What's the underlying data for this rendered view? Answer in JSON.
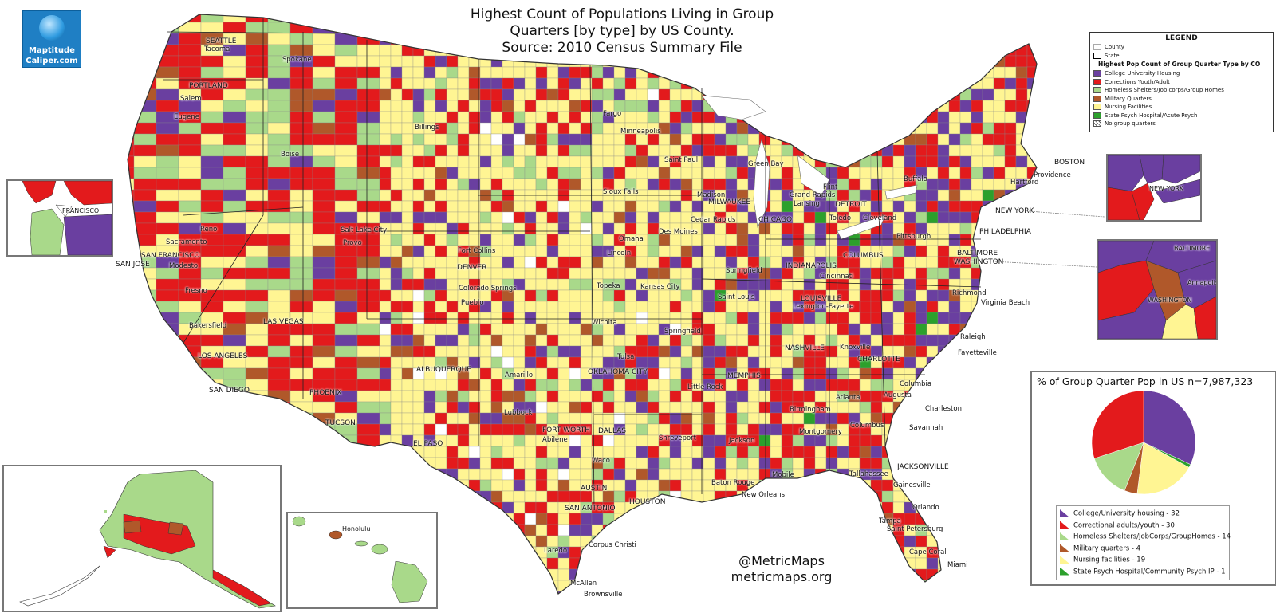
{
  "title": {
    "line1": "Highest Count of Populations Living in Group",
    "line2": "Quarters [by type] by US County.",
    "line3": "Source: 2010 Census Summary File"
  },
  "logo": {
    "line1": "Maptitude",
    "line2": "Caliper.com"
  },
  "colors": {
    "college": "#6a3fa0",
    "corrections": "#e31a1c",
    "homeless": "#a9d98a",
    "military": "#b0582a",
    "nursing": "#fff593",
    "psych": "#2ca02c",
    "none": "#ffffff",
    "border": "#444444"
  },
  "legend": {
    "title": "LEGEND",
    "county": "County",
    "state": "State",
    "subtitle": "Highest Pop Count of Group Quarter Type by CO",
    "items": [
      {
        "label": "College University Housing",
        "color": "#6a3fa0"
      },
      {
        "label": "Corrections Youth/Adult",
        "color": "#e31a1c"
      },
      {
        "label": "Homeless Shelters/Job corps/Group Homes",
        "color": "#a9d98a"
      },
      {
        "label": "Military Quarters",
        "color": "#b0582a"
      },
      {
        "label": "Nursing Facilities",
        "color": "#fff593"
      },
      {
        "label": "State Psych Hospital/Acute Psych",
        "color": "#2ca02c"
      },
      {
        "label": "No group quarters",
        "color": "#ffffff"
      }
    ]
  },
  "chart_data": {
    "type": "pie",
    "title": "% of Group Quarter Pop in US n=7,987,323",
    "slices": [
      {
        "label": "College/University  housing - 32",
        "value": 32,
        "color": "#6a3fa0"
      },
      {
        "label": "Correctional  adults/youth - 30",
        "value": 30,
        "color": "#e31a1c"
      },
      {
        "label": "Homeless Shelters/JobCorps/GroupHomes - 14",
        "value": 14,
        "color": "#a9d98a"
      },
      {
        "label": "Military quarters - 4",
        "value": 4,
        "color": "#b0582a"
      },
      {
        "label": "Nursing facilities - 19",
        "value": 19,
        "color": "#fff593"
      },
      {
        "label": "State Psych Hospital/Community Psych IP - 1",
        "value": 1,
        "color": "#2ca02c"
      }
    ]
  },
  "credit": {
    "handle": "@MetricMaps",
    "site": "metricmaps.org"
  },
  "cities": {
    "seattle": "SEATTLE",
    "tacoma": "Tacoma",
    "spokane": "Spokane",
    "portland": "PORTLAND",
    "salem": "Salem",
    "eugene": "Eugene",
    "billings": "Billings",
    "boise": "Boise",
    "fargo": "Fargo",
    "minneapolis": "Minneapolis",
    "saint_paul": "Saint Paul",
    "green_bay": "Green Bay",
    "flint": "Flint",
    "madison": "Madison",
    "milwaukee": "MILWAUKEE",
    "grand_rapids": "Grand Rapids",
    "lansing": "Lansing",
    "detroit": "DETROIT",
    "sioux_falls": "Sioux Falls",
    "buffalo": "Buffalo",
    "boston": "BOSTON",
    "providence": "Providence",
    "hartford": "Hartford",
    "new_york": "NEW YORK",
    "reno": "Reno",
    "salt_lake_city": "Salt Lake City",
    "provo": "Provo",
    "sacramento": "Sacramento",
    "san_francisco": "SAN FRANCISCO",
    "san_jose": "SAN JOSE",
    "modesto": "Modesto",
    "fresno": "Fresno",
    "bakersfield": "Bakersfield",
    "las_vegas": "LAS VEGAS",
    "los_angeles": "LOS ANGELES",
    "san_diego": "SAN DIEGO",
    "phoenix": "PHOENIX",
    "tucson": "TUCSON",
    "fort_collins": "Fort Collins",
    "denver": "DENVER",
    "colorado_springs": "Colorado Springs",
    "pueblo": "Pueblo",
    "albuquerque": "ALBUQUERQUE",
    "el_paso": "EL PASO",
    "omaha": "Omaha",
    "lincoln": "Lincoln",
    "des_moines": "Des Moines",
    "cedar_rapids": "Cedar Rapids",
    "chicago": "CHICAGO",
    "toledo": "Toledo",
    "cleveland": "Cleveland",
    "pittsburgh": "Pittsburgh",
    "philadelphia": "PHILADELPHIA",
    "baltimore": "BALTIMORE",
    "washington": "WASHINGTON",
    "columbus_oh": "COLUMBUS",
    "indianapolis": "INDIANAPOLIS",
    "cincinnati": "Cincinnati",
    "springfield_il": "Springfield",
    "topeka": "Topeka",
    "kansas_city": "Kansas City",
    "saint_louis": "Saint Louis",
    "louisville": "LOUISVILLE",
    "lexington": "Lexington-Fayette",
    "richmond": "Richmond",
    "virginia_beach": "Virginia Beach",
    "wichita": "Wichita",
    "springfield_mo": "Springfield",
    "nashville": "NASHVILLE",
    "knoxville": "Knoxville",
    "raleigh": "Raleigh",
    "fayetteville": "Fayetteville",
    "charlotte": "CHARLOTTE",
    "amarillo": "Amarillo",
    "oklahoma_city": "OKLAHOMA CITY",
    "tulsa": "Tulsa",
    "memphis": "MEMPHIS",
    "little_rock": "Little Rock",
    "atlanta": "Atlanta",
    "augusta": "Augusta",
    "columbia": "Columbia",
    "charleston": "Charleston",
    "birmingham": "Birmingham",
    "lubbock": "Lubbock",
    "fort_worth": "FORT WORTH",
    "dallas": "DALLAS",
    "abilene": "Abilene",
    "shreveport": "Shreveport",
    "jackson": "Jackson",
    "montgomery": "Montgomery",
    "columbus_ga": "Columbus",
    "savannah": "Savannah",
    "waco": "Waco",
    "jacksonville": "JACKSONVILLE",
    "austin": "AUSTIN",
    "baton_rouge": "Baton Rouge",
    "mobile": "Mobile",
    "tallahassee": "Tallahassee",
    "gainesville": "Gainesville",
    "new_orleans": "New Orleans",
    "san_antonio": "SAN ANTONIO",
    "houston": "HOUSTON",
    "orlando": "Orlando",
    "tampa": "Tampa",
    "saint_petersburg": "Saint Petersburg",
    "laredo": "Laredo",
    "corpus_christi": "Corpus Christi",
    "cape_coral": "Cape Coral",
    "miami": "Miami",
    "mcallen": "McAllen",
    "brownsville": "Brownsville",
    "honolulu": "Honolulu"
  },
  "insets": {
    "sf_label": "FRANCISCO",
    "ny_label": "NEW YORK",
    "dc_baltimore": "BALTIMORE",
    "dc_washington": "WASHINGTON",
    "dc_annapolis": "Annapolis"
  }
}
